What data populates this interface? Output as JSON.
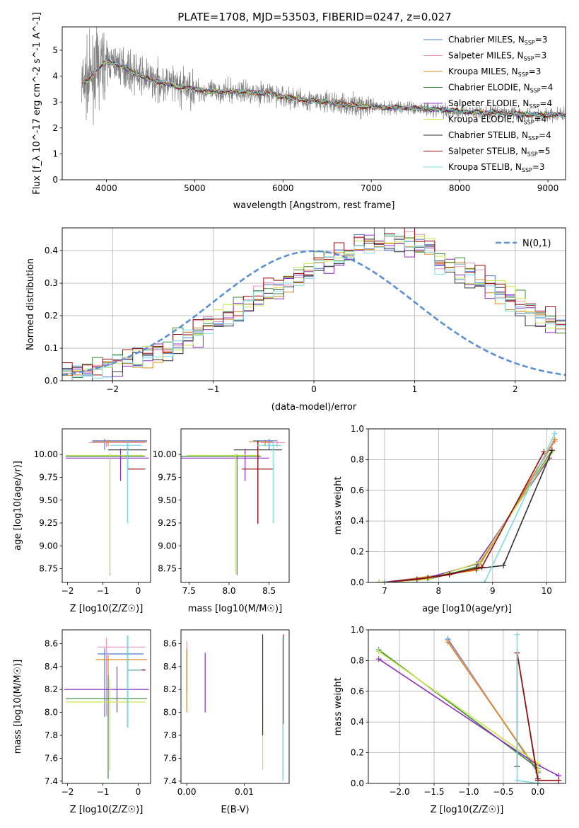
{
  "figure": {
    "title": "PLATE=1708, MJD=53503, FIBERID=0247, z=0.027",
    "series_names": [
      "Chabrier MILES",
      "Salpeter MILES",
      "Kroupa MILES",
      "Chabrier ELODIE",
      "Salpeter ELODIE",
      "Kroupa ELODIE",
      "Chabrier STELIB",
      "Salpeter STELIB",
      "Kroupa STELIB"
    ],
    "nssp": [
      "3",
      "3",
      "3",
      "4",
      "4",
      "4",
      "4",
      "5",
      "3"
    ],
    "colors": [
      "#4a7fd4",
      "#e895bf",
      "#d88a1c",
      "#3c8a3c",
      "#8c2cc2",
      "#c8e64a",
      "#333333",
      "#9a0d0d",
      "#7fdbe0"
    ],
    "data_color": "#808080"
  },
  "chart_data": [
    {
      "id": "spectrum",
      "type": "line",
      "xlabel": "wavelength [Angstrom, rest frame]",
      "ylabel": "Flux [f_λ 10^-17 erg cm^-2 s^-1 A^-1]",
      "xlim": [
        3500,
        9200
      ],
      "ylim": [
        0,
        5.9
      ],
      "xticks": [
        4000,
        5000,
        6000,
        7000,
        8000,
        9000
      ],
      "yticks": [
        0,
        1,
        2,
        3,
        4,
        5
      ],
      "legend": "upper-right",
      "grid": false,
      "continuum_model_x": [
        3720,
        3800,
        3900,
        4000,
        4100,
        4200,
        4300,
        4500,
        4800,
        5000,
        5200,
        5500,
        5800,
        6000,
        6300,
        6600,
        7000,
        7400,
        7800,
        8200,
        8600,
        9000,
        9200
      ],
      "continuum_model_y": [
        3.65,
        3.85,
        4.3,
        4.55,
        4.5,
        4.35,
        4.15,
        3.85,
        3.6,
        3.5,
        3.4,
        3.4,
        3.35,
        3.2,
        3.05,
        2.95,
        2.8,
        2.78,
        2.7,
        2.6,
        2.55,
        2.5,
        2.5
      ]
    },
    {
      "id": "residuals",
      "type": "histogram",
      "xlabel": "(data-model)/error",
      "ylabel": "Normed distribution",
      "xlim": [
        -2.5,
        2.5
      ],
      "ylim": [
        0,
        0.47
      ],
      "xticks": [
        -2,
        -1,
        0,
        1,
        2
      ],
      "yticks": [
        0.0,
        0.1,
        0.2,
        0.3,
        0.4
      ],
      "grid": true,
      "legend_label": "N(0,1)",
      "bin_width": 0.1,
      "bins_start": -2.5,
      "reference_values": [
        0.021,
        0.026,
        0.031,
        0.036,
        0.043,
        0.051,
        0.059,
        0.069,
        0.079,
        0.091,
        0.104,
        0.117,
        0.132,
        0.147,
        0.164,
        0.18,
        0.198,
        0.216,
        0.234,
        0.253,
        0.271,
        0.289,
        0.306,
        0.323,
        0.339,
        0.353,
        0.366,
        0.377,
        0.386,
        0.393,
        0.397,
        0.4,
        0.4,
        0.397,
        0.393,
        0.386,
        0.377,
        0.366,
        0.353,
        0.339,
        0.323,
        0.306,
        0.289,
        0.271,
        0.253,
        0.234,
        0.216,
        0.198,
        0.18,
        0.164,
        0.147,
        0.132,
        0.117,
        0.104,
        0.091,
        0.079,
        0.069,
        0.059,
        0.051,
        0.043,
        0.036
      ],
      "model_offsets": [
        0.0,
        0.018,
        -0.012,
        0.025,
        -0.02,
        0.012,
        -0.028,
        0.03,
        -0.015
      ]
    },
    {
      "id": "age-vs-Z",
      "type": "errorbar",
      "xlabel": "Z [log10(Z/Z☉)]",
      "ylabel": "age [log10(age/yr)]",
      "xlim": [
        -2.15,
        0.35
      ],
      "ylim": [
        8.6,
        10.28
      ],
      "xticks": [
        -2,
        -1,
        0
      ],
      "yticks": [
        8.75,
        9.0,
        9.25,
        9.5,
        9.75,
        10.0
      ],
      "points": [
        {
          "x": -0.95,
          "y": 10.15,
          "xerr": [
            0.35,
            1.2
          ],
          "yerr": [
            0.1,
            0.02
          ]
        },
        {
          "x": -0.9,
          "y": 10.13,
          "xerr": [
            0.5,
            1.1
          ],
          "yerr": [
            0.05,
            0.03
          ]
        },
        {
          "x": -0.85,
          "y": 10.14,
          "xerr": [
            0.45,
            1.1
          ],
          "yerr": [
            0.05,
            0.02
          ]
        },
        {
          "x": -0.8,
          "y": 9.98,
          "xerr": [
            1.25,
            1.0
          ],
          "yerr": [
            1.3,
            0.02
          ]
        },
        {
          "x": -0.5,
          "y": 9.96,
          "xerr": [
            1.55,
            0.8
          ],
          "yerr": [
            0.25,
            0.1
          ]
        },
        {
          "x": -0.8,
          "y": 9.99,
          "xerr": [
            1.25,
            0.95
          ],
          "yerr": [
            1.3,
            0.02
          ]
        },
        {
          "x": -0.3,
          "y": 10.05,
          "xerr": [
            0.55,
            0.55
          ],
          "yerr": [
            0.8,
            0.1
          ]
        },
        {
          "x": -0.3,
          "y": 9.84,
          "xerr": [
            0.0,
            0.5
          ],
          "yerr": [
            0.0,
            0.3
          ]
        },
        {
          "x": -0.3,
          "y": 10.1,
          "xerr": [
            0.5,
            0.4
          ],
          "yerr": [
            0.85,
            0.05
          ]
        }
      ]
    },
    {
      "id": "age-vs-mass",
      "type": "errorbar",
      "xlabel": "mass [log10(M/M☉)]",
      "ylabel": "",
      "xlim": [
        7.4,
        8.75
      ],
      "ylim": [
        8.6,
        10.28
      ],
      "xticks": [
        7.5,
        8.0,
        8.5
      ],
      "yticks": [
        8.75,
        9.0,
        9.25,
        9.5,
        9.75,
        10.0
      ],
      "points": [
        {
          "x": 8.5,
          "y": 10.15,
          "xerr": [
            0.2,
            0.1
          ],
          "yerr": [
            0.1,
            0.02
          ]
        },
        {
          "x": 8.6,
          "y": 10.13,
          "xerr": [
            0.2,
            0.1
          ],
          "yerr": [
            0.05,
            0.03
          ]
        },
        {
          "x": 8.45,
          "y": 10.14,
          "xerr": [
            0.2,
            0.1
          ],
          "yerr": [
            0.05,
            0.02
          ]
        },
        {
          "x": 8.1,
          "y": 9.98,
          "xerr": [
            0.7,
            0.3
          ],
          "yerr": [
            1.3,
            0.02
          ]
        },
        {
          "x": 8.2,
          "y": 9.96,
          "xerr": [
            0.8,
            0.3
          ],
          "yerr": [
            0.25,
            0.1
          ]
        },
        {
          "x": 8.08,
          "y": 9.99,
          "xerr": [
            0.6,
            0.3
          ],
          "yerr": [
            1.3,
            0.02
          ]
        },
        {
          "x": 8.36,
          "y": 10.05,
          "xerr": [
            0.3,
            0.3
          ],
          "yerr": [
            0.8,
            0.1
          ]
        },
        {
          "x": 8.36,
          "y": 9.84,
          "xerr": [
            0.2,
            0.2
          ],
          "yerr": [
            0.6,
            0.3
          ]
        },
        {
          "x": 8.55,
          "y": 10.1,
          "xerr": [
            0.2,
            0.1
          ],
          "yerr": [
            0.85,
            0.05
          ]
        }
      ]
    },
    {
      "id": "massweight-vs-age",
      "type": "line",
      "xlabel": "age [log10(age/yr)]",
      "ylabel": "mass weight",
      "xlim": [
        6.7,
        10.35
      ],
      "ylim": [
        0,
        1
      ],
      "xticks": [
        7,
        8,
        9,
        10
      ],
      "yticks": [
        0.0,
        0.2,
        0.4,
        0.6,
        0.8,
        1.0
      ],
      "grid": true,
      "series": [
        {
          "x": [
            7.0,
            8.7,
            10.15
          ],
          "y": [
            0.0,
            0.08,
            0.93
          ]
        },
        {
          "x": [
            7.0,
            8.7,
            10.15
          ],
          "y": [
            0.0,
            0.08,
            0.92
          ]
        },
        {
          "x": [
            7.0,
            8.7,
            10.15
          ],
          "y": [
            0.0,
            0.08,
            0.93
          ]
        },
        {
          "x": [
            6.9,
            7.8,
            8.7,
            10.1
          ],
          "y": [
            0.0,
            0.02,
            0.1,
            0.86
          ]
        },
        {
          "x": [
            6.9,
            7.8,
            8.7,
            10.05
          ],
          "y": [
            0.0,
            0.03,
            0.12,
            0.81
          ]
        },
        {
          "x": [
            6.9,
            7.8,
            8.75,
            10.1
          ],
          "y": [
            0.0,
            0.02,
            0.13,
            0.85
          ]
        },
        {
          "x": [
            7.0,
            7.8,
            8.7,
            9.2,
            10.1
          ],
          "y": [
            0.0,
            0.03,
            0.09,
            0.11,
            0.86
          ]
        },
        {
          "x": [
            7.0,
            7.6,
            8.2,
            8.8,
            9.95
          ],
          "y": [
            0.0,
            0.02,
            0.05,
            0.1,
            0.85
          ]
        },
        {
          "x": [
            7.0,
            8.85,
            10.15
          ],
          "y": [
            0.0,
            0.0,
            0.97
          ]
        }
      ]
    },
    {
      "id": "mass-vs-Z",
      "type": "errorbar",
      "xlabel": "Z [log10(Z/Z☉)]",
      "ylabel": "mass [log10(M/M☉)]",
      "xlim": [
        -2.15,
        0.35
      ],
      "ylim": [
        7.38,
        8.72
      ],
      "xticks": [
        -2,
        -1,
        0
      ],
      "yticks": [
        7.4,
        7.6,
        7.8,
        8.0,
        8.2,
        8.4,
        8.6
      ],
      "points": [
        {
          "x": -0.95,
          "y": 8.51,
          "xerr": [
            0.2,
            1.1
          ],
          "yerr": [
            0.55,
            0.05
          ]
        },
        {
          "x": -0.9,
          "y": 8.57,
          "xerr": [
            0.25,
            1.1
          ],
          "yerr": [
            0.6,
            0.08
          ]
        },
        {
          "x": -0.85,
          "y": 8.46,
          "xerr": [
            0.35,
            1.1
          ],
          "yerr": [
            0.5,
            0.04
          ]
        },
        {
          "x": -0.85,
          "y": 8.12,
          "xerr": [
            1.2,
            1.1
          ],
          "yerr": [
            0.7,
            0.2
          ]
        },
        {
          "x": -0.6,
          "y": 8.2,
          "xerr": [
            1.5,
            0.9
          ],
          "yerr": [
            0.2,
            0.2
          ]
        },
        {
          "x": -0.8,
          "y": 8.09,
          "xerr": [
            1.25,
            1.0
          ],
          "yerr": [
            0.6,
            0.2
          ]
        },
        {
          "x": -0.3,
          "y": 8.37,
          "xerr": [
            0.0,
            0.5
          ],
          "yerr": [
            0.5,
            0.3
          ]
        },
        {
          "x": -0.3,
          "y": 8.37,
          "xerr": [
            0.0,
            0.5
          ],
          "yerr": [
            0.5,
            0.3
          ]
        },
        {
          "x": -0.3,
          "y": 8.37,
          "xerr": [
            0.0,
            0.4
          ],
          "yerr": [
            0.5,
            0.3
          ]
        }
      ]
    },
    {
      "id": "mass-vs-ebv",
      "type": "errorbar",
      "xlabel": "E(B-V)",
      "ylabel": "",
      "xlim": [
        -0.001,
        0.0178
      ],
      "ylim": [
        7.38,
        8.72
      ],
      "xticks": [
        0.0,
        0.01
      ],
      "xtick_labels": [
        "0.00",
        "0.01"
      ],
      "yticks": [
        7.4,
        7.6,
        7.8,
        8.0,
        8.2,
        8.4,
        8.6
      ],
      "points": [
        {
          "x": 0.0,
          "y": 8.51,
          "xerr": [
            0,
            0
          ],
          "yerr": [
            0.35,
            0.05
          ]
        },
        {
          "x": 0.0,
          "y": 8.57,
          "xerr": [
            0,
            0
          ],
          "yerr": [
            0.3,
            0.05
          ]
        },
        {
          "x": 0.0,
          "y": 8.3,
          "xerr": [
            0,
            0
          ],
          "yerr": [
            0.3,
            0.25
          ]
        },
        {
          "x": 0.0167,
          "y": 8.12,
          "xerr": [
            0,
            0
          ],
          "yerr": [
            0.7,
            0.5
          ]
        },
        {
          "x": 0.0032,
          "y": 8.25,
          "xerr": [
            0,
            0
          ],
          "yerr": [
            0.25,
            0.27
          ]
        },
        {
          "x": 0.0132,
          "y": 8.0,
          "xerr": [
            0,
            0
          ],
          "yerr": [
            0.5,
            0.1
          ]
        },
        {
          "x": 0.0132,
          "y": 8.3,
          "xerr": [
            0,
            0
          ],
          "yerr": [
            0.5,
            0.38
          ]
        },
        {
          "x": 0.0168,
          "y": 8.5,
          "xerr": [
            0,
            0
          ],
          "yerr": [
            0.6,
            0.18
          ]
        },
        {
          "x": 0.0167,
          "y": 8.1,
          "xerr": [
            0,
            0
          ],
          "yerr": [
            0.7,
            0.56
          ]
        }
      ]
    },
    {
      "id": "massweight-vs-Z",
      "type": "line",
      "xlabel": "Z [log10(Z/Z☉)]",
      "ylabel": "mass weight",
      "xlim": [
        -2.45,
        0.4
      ],
      "ylim": [
        0,
        1
      ],
      "xticks": [
        -2.0,
        -1.5,
        -1.0,
        -0.5,
        0.0
      ],
      "yticks": [
        0.0,
        0.2,
        0.4,
        0.6,
        0.8,
        1.0
      ],
      "grid": true,
      "series": [
        {
          "x": [
            -1.3,
            0.0,
            0.0
          ],
          "y": [
            0.94,
            0.07,
            0.0
          ]
        },
        {
          "x": [
            -1.3,
            0.0,
            0.0
          ],
          "y": [
            0.93,
            0.08,
            0.0
          ]
        },
        {
          "x": [
            -1.3,
            0.0,
            0.0
          ],
          "y": [
            0.92,
            0.08,
            0.0
          ]
        },
        {
          "x": [
            -2.3,
            0.0,
            0.0
          ],
          "y": [
            0.87,
            0.1,
            0.0
          ]
        },
        {
          "x": [
            -2.3,
            0.0,
            0.3
          ],
          "y": [
            0.81,
            0.12,
            0.05
          ]
        },
        {
          "x": [
            -2.3,
            0.0,
            0.0
          ],
          "y": [
            0.86,
            0.13,
            0.0
          ]
        },
        {
          "x": [
            -0.3,
            -0.3,
            0.0,
            0.0
          ],
          "y": [
            0.11,
            0.85,
            0.03,
            0.0
          ]
        },
        {
          "x": [
            -0.3,
            0.0,
            0.3
          ],
          "y": [
            0.85,
            0.02,
            0.02
          ]
        },
        {
          "x": [
            -0.3,
            -0.3,
            0.0
          ],
          "y": [
            0.97,
            0.02,
            0.0
          ]
        }
      ]
    }
  ]
}
